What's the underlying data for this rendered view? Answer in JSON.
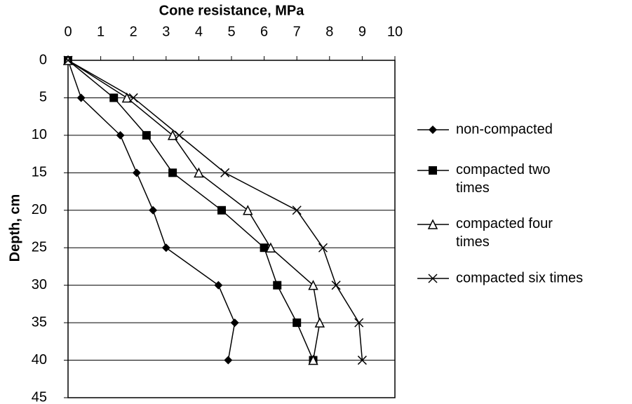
{
  "chart_data": {
    "type": "line",
    "title": "Cone resistance, MPa",
    "y_label": "Depth, cm",
    "xlim": [
      0,
      10
    ],
    "xticks": [
      0,
      1,
      2,
      3,
      4,
      5,
      6,
      7,
      8,
      9,
      10
    ],
    "ylim": [
      0,
      45
    ],
    "yticks": [
      0,
      5,
      10,
      15,
      20,
      25,
      30,
      35,
      40,
      45
    ],
    "y_inverted": true,
    "x_axis_top": true,
    "grid": "horizontal",
    "legend": "right",
    "series": [
      {
        "name": "non-compacted",
        "marker": "diamond",
        "color": "#000000",
        "x": [
          0,
          0.4,
          1.6,
          2.1,
          2.6,
          3.0,
          4.6,
          5.1,
          4.9
        ],
        "y": [
          0,
          5,
          10,
          15,
          20,
          25,
          30,
          35,
          40
        ]
      },
      {
        "name": "compacted two times",
        "marker": "square",
        "color": "#000000",
        "x": [
          0,
          1.4,
          2.4,
          3.2,
          4.7,
          6.0,
          6.4,
          7.0,
          7.5
        ],
        "y": [
          0,
          5,
          10,
          15,
          20,
          25,
          30,
          35,
          40
        ]
      },
      {
        "name": "compacted four times",
        "marker": "triangle",
        "color": "#000000",
        "x": [
          0,
          1.8,
          3.2,
          4.0,
          5.5,
          6.2,
          7.5,
          7.7,
          7.5
        ],
        "y": [
          0,
          5,
          10,
          15,
          20,
          25,
          30,
          35,
          40
        ]
      },
      {
        "name": "compacted six times",
        "marker": "cross",
        "color": "#000000",
        "x": [
          0,
          2.0,
          3.4,
          4.8,
          7.0,
          7.8,
          8.2,
          8.9,
          9.0
        ],
        "y": [
          0,
          5,
          10,
          15,
          20,
          25,
          30,
          35,
          40
        ]
      }
    ]
  }
}
